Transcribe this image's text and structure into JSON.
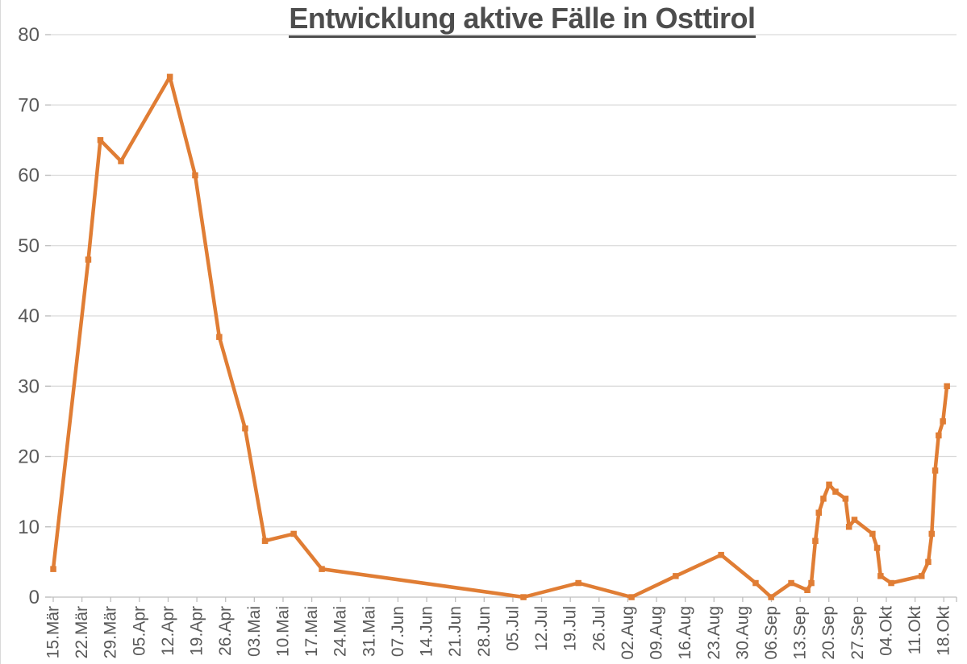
{
  "chart_data": {
    "type": "line",
    "title": "Entwicklung aktive Fälle in Osttirol",
    "xlabel": "",
    "ylabel": "",
    "ylim": [
      0,
      80
    ],
    "y_ticks": [
      0,
      10,
      20,
      30,
      40,
      50,
      60,
      70,
      80
    ],
    "x_tick_labels": [
      "15.Mär",
      "22.Mär",
      "29.Mär",
      "05.Apr",
      "12.Apr",
      "19.Apr",
      "26.Apr",
      "03.Mai",
      "10.Mai",
      "17.Mai",
      "24.Mai",
      "31.Mai",
      "07.Jun",
      "14.Jun",
      "21.Jun",
      "28.Jun",
      "05.Jul",
      "12.Jul",
      "19.Jul",
      "26.Jul",
      "02.Aug",
      "09.Aug",
      "16.Aug",
      "23.Aug",
      "30.Aug",
      "06.Sep",
      "13.Sep",
      "20.Sep",
      "27.Sep",
      "04.Okt",
      "11.Okt",
      "18.Okt"
    ],
    "x_tick_label_rotation": -90,
    "grid": "horizontal",
    "legend_position": "none",
    "series": [
      {
        "color": "#E07D34",
        "marker": "square",
        "points": [
          {
            "x": 0.0,
            "y": 4
          },
          {
            "x": 1.22,
            "y": 48
          },
          {
            "x": 1.64,
            "y": 65
          },
          {
            "x": 2.36,
            "y": 62
          },
          {
            "x": 4.06,
            "y": 74
          },
          {
            "x": 4.94,
            "y": 60
          },
          {
            "x": 5.78,
            "y": 37
          },
          {
            "x": 6.68,
            "y": 24
          },
          {
            "x": 7.37,
            "y": 8
          },
          {
            "x": 8.37,
            "y": 9
          },
          {
            "x": 9.35,
            "y": 4
          },
          {
            "x": 16.37,
            "y": 0
          },
          {
            "x": 18.28,
            "y": 2
          },
          {
            "x": 20.13,
            "y": 0
          },
          {
            "x": 21.67,
            "y": 3
          },
          {
            "x": 23.25,
            "y": 6
          },
          {
            "x": 24.45,
            "y": 2
          },
          {
            "x": 24.99,
            "y": 0
          },
          {
            "x": 25.69,
            "y": 2
          },
          {
            "x": 26.25,
            "y": 1
          },
          {
            "x": 26.39,
            "y": 2
          },
          {
            "x": 26.53,
            "y": 8
          },
          {
            "x": 26.65,
            "y": 12
          },
          {
            "x": 26.81,
            "y": 14
          },
          {
            "x": 27.01,
            "y": 16
          },
          {
            "x": 27.23,
            "y": 15
          },
          {
            "x": 27.58,
            "y": 14
          },
          {
            "x": 27.7,
            "y": 10
          },
          {
            "x": 27.89,
            "y": 11
          },
          {
            "x": 28.52,
            "y": 9
          },
          {
            "x": 28.68,
            "y": 7
          },
          {
            "x": 28.8,
            "y": 3
          },
          {
            "x": 29.17,
            "y": 2
          },
          {
            "x": 30.23,
            "y": 3
          },
          {
            "x": 30.46,
            "y": 5
          },
          {
            "x": 30.58,
            "y": 9
          },
          {
            "x": 30.7,
            "y": 18
          },
          {
            "x": 30.82,
            "y": 23
          },
          {
            "x": 30.97,
            "y": 25
          },
          {
            "x": 31.11,
            "y": 30
          }
        ]
      }
    ],
    "colors": {
      "series_orange": "#E07D34",
      "grid_color": "#D9D9D9",
      "axis_color": "#BFBFBF",
      "tick_label_color": "#595959",
      "title_color": "#4D4D4D",
      "background": "#FFFFFF"
    }
  }
}
